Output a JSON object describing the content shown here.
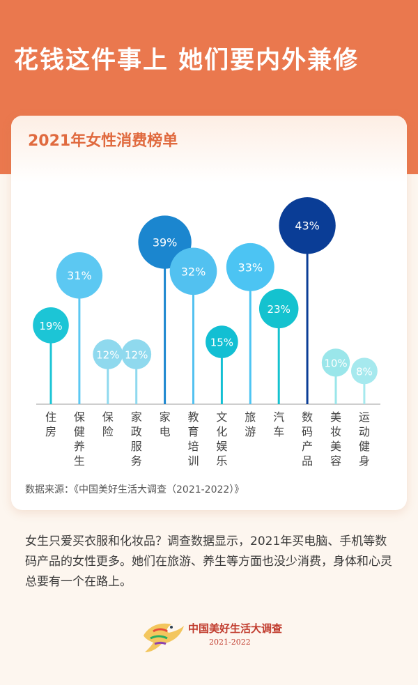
{
  "headline": "花钱这件事上  她们要内外兼修",
  "card": {
    "title": "2021年女性消费榜单",
    "source": "数据来源：《中国美好生活大调查（2021-2022）》"
  },
  "colors": {
    "header": "#ea784e",
    "title": "#e06a3f",
    "axis": "#bdbdbd",
    "label": "#444444"
  },
  "chart_data": {
    "type": "lollipop",
    "title": "2021年女性消费榜单",
    "unit": "%",
    "ylim": [
      0,
      45
    ],
    "grid": false,
    "categories": [
      "住房",
      "保健养生",
      "保险",
      "家政服务",
      "家电",
      "教育培训",
      "文化娱乐",
      "旅游",
      "汽车",
      "数码产品",
      "美妆美容",
      "运动健身"
    ],
    "values": [
      19,
      31,
      12,
      12,
      39,
      32,
      15,
      33,
      23,
      43,
      10,
      8
    ],
    "labels": [
      "19%",
      "31%",
      "12%",
      "12%",
      "39%",
      "32%",
      "15%",
      "33%",
      "23%",
      "43%",
      "10%",
      "8%"
    ],
    "point_colors": [
      "#1cc5d6",
      "#5cc8f2",
      "#8fd9ee",
      "#8fd9ee",
      "#1b86cf",
      "#52c1f0",
      "#12bfd3",
      "#4cc4f3",
      "#14c2cf",
      "#0a3d96",
      "#9ae6ea",
      "#a6e9ee"
    ]
  },
  "body_text": "女生只爱买衣服和化妆品？调查数据显示，2021年买电脑、手机等数码产品的女性更多。她们在旅游、养生等方面也没少消费，身体和心灵总要有一个在路上。",
  "logo": {
    "name": "中国美好生活大调查",
    "years": "2021-2022"
  }
}
